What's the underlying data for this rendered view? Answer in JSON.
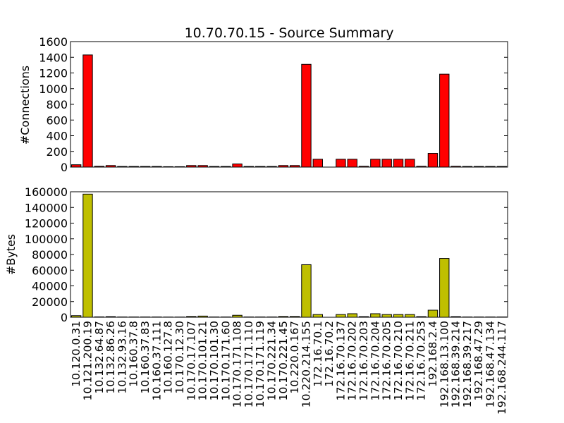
{
  "chart_data": {
    "type": "bar",
    "title": "10.70.70.15 - Source Summary",
    "categories": [
      "10.120.0.31",
      "10.121.200.19",
      "10.132.64.87",
      "10.132.86.26",
      "10.132.93.16",
      "10.160.37.8",
      "10.160.37.83",
      "10.160.37.111",
      "10.160.127.8",
      "10.170.12.30",
      "10.170.17.107",
      "10.170.101.21",
      "10.170.101.30",
      "10.170.171.60",
      "10.170.171.108",
      "10.170.171.110",
      "10.170.171.119",
      "10.170.221.34",
      "10.170.221.45",
      "10.220.0.167",
      "10.220.214.155",
      "172.16.70.1",
      "172.16.70.2",
      "172.16.70.137",
      "172.16.70.202",
      "172.16.70.203",
      "172.16.70.204",
      "172.16.70.205",
      "172.16.70.210",
      "172.16.70.211",
      "172.16.70.253",
      "192.168.2.4",
      "192.168.13.100",
      "192.168.39.214",
      "192.168.39.217",
      "192.168.47.29",
      "192.168.47.134",
      "192.168.244.117"
    ],
    "panels": [
      {
        "ylabel": "#Connections",
        "ylim": [
          0,
          1600
        ],
        "yticks": [
          0,
          200,
          400,
          600,
          800,
          1000,
          1200,
          1400,
          1600
        ],
        "ytick_labels": [
          "0",
          "200",
          "400",
          "600",
          "800",
          "1000",
          "1200",
          "1400",
          "1600"
        ],
        "color": "#ff0000",
        "values": [
          30,
          1430,
          10,
          20,
          8,
          8,
          8,
          8,
          5,
          5,
          20,
          20,
          8,
          8,
          40,
          8,
          8,
          8,
          20,
          20,
          1310,
          100,
          0,
          100,
          100,
          10,
          100,
          100,
          100,
          100,
          10,
          175,
          1185,
          10,
          8,
          8,
          8,
          8
        ]
      },
      {
        "ylabel": "#Bytes",
        "ylim": [
          0,
          160000
        ],
        "yticks": [
          0,
          20000,
          40000,
          60000,
          80000,
          100000,
          120000,
          140000,
          160000
        ],
        "ytick_labels": [
          "0",
          "20000",
          "40000",
          "60000",
          "80000",
          "100000",
          "120000",
          "140000",
          "160000"
        ],
        "color": "#bfbf00",
        "values": [
          2000,
          157000,
          500,
          800,
          400,
          400,
          400,
          400,
          300,
          300,
          1000,
          1500,
          400,
          400,
          2500,
          400,
          400,
          400,
          1000,
          1000,
          67000,
          3500,
          0,
          3500,
          4500,
          800,
          4500,
          3500,
          3500,
          3500,
          800,
          9000,
          75000,
          800,
          400,
          400,
          400,
          400
        ]
      }
    ]
  }
}
